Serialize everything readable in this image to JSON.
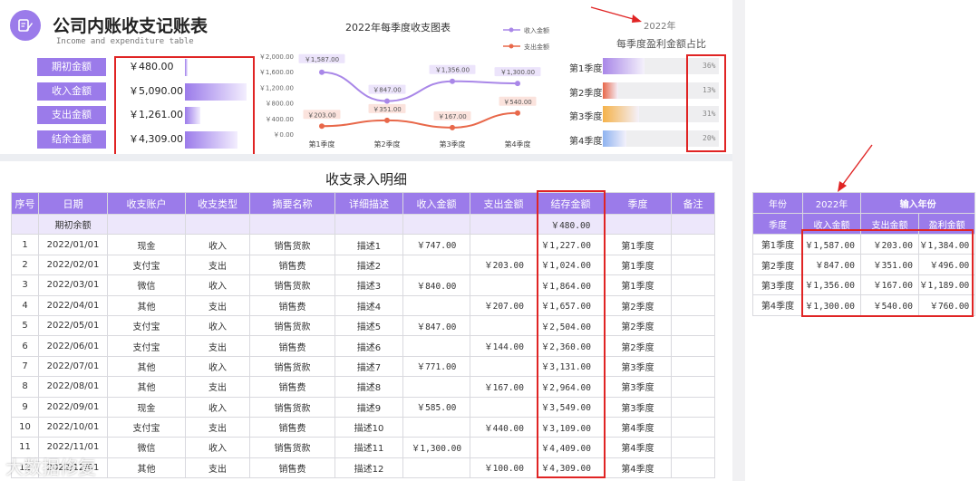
{
  "header": {
    "title": "公司内账收支记账表",
    "subtitle": "Income and expenditure table"
  },
  "summary": [
    {
      "label": "期初金额",
      "value": "￥480.00",
      "fill": 0.05
    },
    {
      "label": "收入金额",
      "value": "￥5,090.00",
      "fill": 1.0
    },
    {
      "label": "支出金额",
      "value": "￥1,261.00",
      "fill": 0.25
    },
    {
      "label": "结余金额",
      "value": "￥4,309.00",
      "fill": 0.85
    }
  ],
  "chart_data": {
    "type": "line",
    "title": "2022年每季度收支图表",
    "categories": [
      "第1季度",
      "第2季度",
      "第3季度",
      "第4季度"
    ],
    "y_ticks": [
      "￥0.00",
      "￥400.00",
      "￥800.00",
      "￥1,200.00",
      "￥1,600.00",
      "￥2,000.00"
    ],
    "ylim": [
      0,
      2000
    ],
    "legend_placement": "top-right",
    "series": [
      {
        "name": "收入金额",
        "values": [
          1587,
          847,
          1356,
          1300
        ],
        "labels": [
          "￥1,587.00",
          "￥847.00",
          "￥1,356.00",
          "￥1,300.00"
        ],
        "color": "#a987e8"
      },
      {
        "name": "支出金额",
        "values": [
          203,
          351,
          167,
          540
        ],
        "labels": [
          "￥203.00",
          "￥351.00",
          "￥167.00",
          "￥540.00"
        ],
        "color": "#e8684a"
      }
    ]
  },
  "profit_share": {
    "year": "2022年",
    "title": "每季度盈利金额占比",
    "items": [
      {
        "label": "第1季度",
        "pct": "36%",
        "value": 0.36,
        "color": "#a987e8"
      },
      {
        "label": "第2季度",
        "pct": "13%",
        "value": 0.13,
        "color": "#e8684a"
      },
      {
        "label": "第3季度",
        "pct": "31%",
        "value": 0.31,
        "color": "#f5b24a"
      },
      {
        "label": "第4季度",
        "pct": "20%",
        "value": 0.2,
        "color": "#8fb3f0"
      }
    ]
  },
  "ledger": {
    "title": "收支录入明细",
    "headers": [
      "序号",
      "日期",
      "收支账户",
      "收支类型",
      "摘要名称",
      "详细描述",
      "收入金额",
      "支出金额",
      "结存金额",
      "季度",
      "备注"
    ],
    "opening_label": "期初余额",
    "opening_balance": "￥480.00",
    "rows": [
      [
        "1",
        "2022/01/01",
        "现金",
        "收入",
        "销售货款",
        "描述1",
        "￥747.00",
        "",
        "￥1,227.00",
        "第1季度",
        ""
      ],
      [
        "2",
        "2022/02/01",
        "支付宝",
        "支出",
        "销售费",
        "描述2",
        "",
        "￥203.00",
        "￥1,024.00",
        "第1季度",
        ""
      ],
      [
        "3",
        "2022/03/01",
        "微信",
        "收入",
        "销售货款",
        "描述3",
        "￥840.00",
        "",
        "￥1,864.00",
        "第1季度",
        ""
      ],
      [
        "4",
        "2022/04/01",
        "其他",
        "支出",
        "销售费",
        "描述4",
        "",
        "￥207.00",
        "￥1,657.00",
        "第2季度",
        ""
      ],
      [
        "5",
        "2022/05/01",
        "支付宝",
        "收入",
        "销售货款",
        "描述5",
        "￥847.00",
        "",
        "￥2,504.00",
        "第2季度",
        ""
      ],
      [
        "6",
        "2022/06/01",
        "支付宝",
        "支出",
        "销售费",
        "描述6",
        "",
        "￥144.00",
        "￥2,360.00",
        "第2季度",
        ""
      ],
      [
        "7",
        "2022/07/01",
        "其他",
        "收入",
        "销售货款",
        "描述7",
        "￥771.00",
        "",
        "￥3,131.00",
        "第3季度",
        ""
      ],
      [
        "8",
        "2022/08/01",
        "其他",
        "支出",
        "销售费",
        "描述8",
        "",
        "￥167.00",
        "￥2,964.00",
        "第3季度",
        ""
      ],
      [
        "9",
        "2022/09/01",
        "现金",
        "收入",
        "销售货款",
        "描述9",
        "￥585.00",
        "",
        "￥3,549.00",
        "第3季度",
        ""
      ],
      [
        "10",
        "2022/10/01",
        "支付宝",
        "支出",
        "销售费",
        "描述10",
        "",
        "￥440.00",
        "￥3,109.00",
        "第4季度",
        ""
      ],
      [
        "11",
        "2022/11/01",
        "微信",
        "收入",
        "销售货款",
        "描述11",
        "￥1,300.00",
        "",
        "￥4,409.00",
        "第4季度",
        ""
      ],
      [
        "12",
        "2022/12/01",
        "其他",
        "支出",
        "销售费",
        "描述12",
        "",
        "￥100.00",
        "￥4,309.00",
        "第4季度",
        ""
      ]
    ]
  },
  "year_table": {
    "h_year": "年份",
    "year": "2022年",
    "input_label": "输入年份",
    "headers": [
      "季度",
      "收入金额",
      "支出金额",
      "盈利金额"
    ],
    "rows": [
      [
        "第1季度",
        "￥1,587.00",
        "￥203.00",
        "￥1,384.00"
      ],
      [
        "第2季度",
        "￥847.00",
        "￥351.00",
        "￥496.00"
      ],
      [
        "第3季度",
        "￥1,356.00",
        "￥167.00",
        "￥1,189.00"
      ],
      [
        "第4季度",
        "￥1,300.00",
        "￥540.00",
        "￥760.00"
      ]
    ]
  },
  "watermark": "大数据修复",
  "colors": {
    "accent": "#9b7bea",
    "annotation_red": "#e02424"
  }
}
